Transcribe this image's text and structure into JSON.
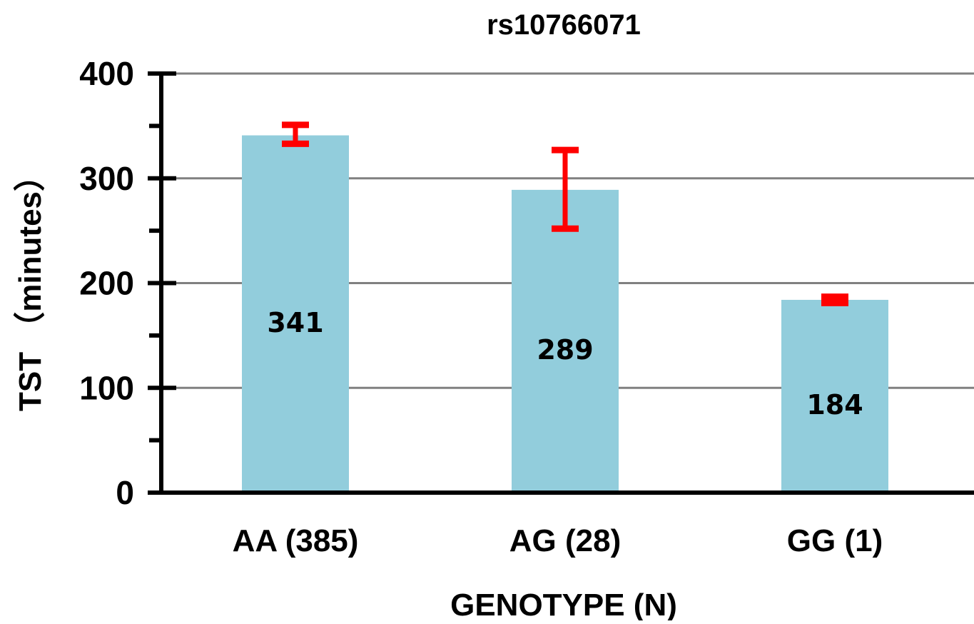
{
  "chart_data": {
    "type": "bar",
    "title": "rs10766071",
    "xlabel": "GENOTYPE (N)",
    "ylabel": "TST （minutes）",
    "categories": [
      "AA (385)",
      "AG (28)",
      "GG (1)"
    ],
    "values": [
      341,
      289,
      184
    ],
    "data_labels": [
      "341",
      "289",
      "184"
    ],
    "error_bars": [
      {
        "upper": 351,
        "lower": 333
      },
      {
        "upper": 327,
        "lower": 252
      },
      {
        "upper": 187,
        "lower": 181
      }
    ],
    "ylim": [
      0,
      400
    ],
    "yticks": [
      0,
      100,
      200,
      300,
      400
    ],
    "ytick_labels": [
      "0",
      "100",
      "200",
      "300",
      "400"
    ],
    "grid": true,
    "legend": "none",
    "colors": {
      "bar": "#92CDDC",
      "error_bar": "#FF0000",
      "axis": "#000000",
      "grid": "#808080"
    }
  }
}
